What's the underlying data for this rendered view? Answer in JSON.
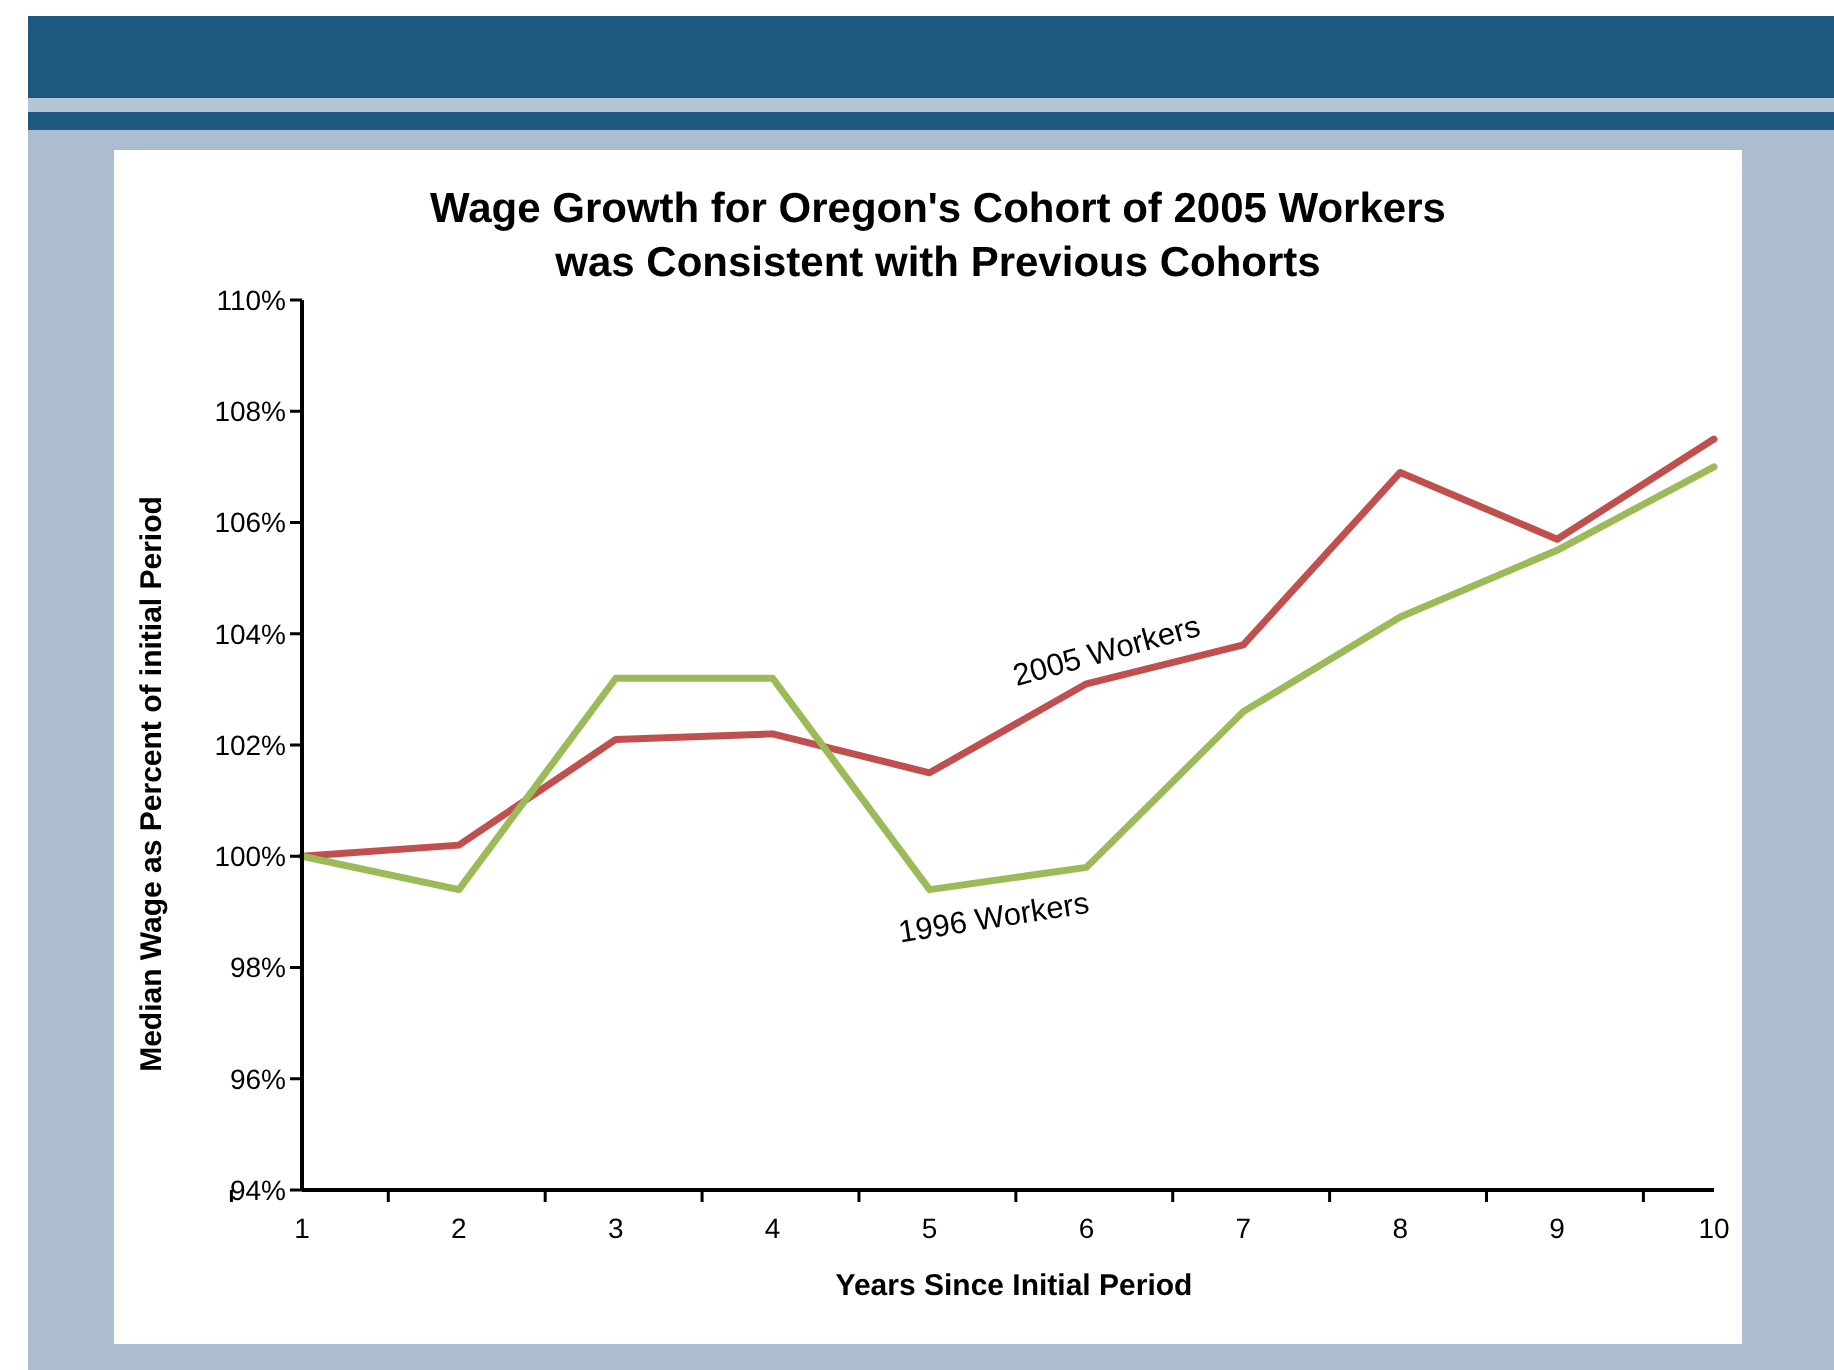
{
  "chart_data": {
    "type": "line",
    "title": "Wage Growth for Oregon's Cohort of 2005 Workers was Consistent with Previous Cohorts",
    "xlabel": "Years Since Initial Period",
    "ylabel": "Median Wage as Percent of initial Period",
    "categories": [
      "1",
      "2",
      "3",
      "4",
      "5",
      "6",
      "7",
      "8",
      "9",
      "10"
    ],
    "series": [
      {
        "name": "2005 Workers",
        "color": "#c0504d",
        "values": [
          100.0,
          100.2,
          102.1,
          102.2,
          101.5,
          103.1,
          103.8,
          106.9,
          105.7,
          107.5
        ]
      },
      {
        "name": "1996 Workers",
        "color": "#9bbb59",
        "values": [
          100.0,
          99.4,
          103.2,
          103.2,
          99.4,
          99.8,
          102.6,
          104.3,
          105.5,
          107.0
        ]
      }
    ],
    "ylim": [
      94,
      110
    ],
    "yticks": [
      {
        "value": 94,
        "label": "94%"
      },
      {
        "value": 96,
        "label": "96%"
      },
      {
        "value": 98,
        "label": "98%"
      },
      {
        "value": 100,
        "label": "100%"
      },
      {
        "value": 102,
        "label": "102%"
      },
      {
        "value": 104,
        "label": "104%"
      },
      {
        "value": 106,
        "label": "106%"
      },
      {
        "value": 108,
        "label": "108%"
      },
      {
        "value": 110,
        "label": "110%"
      }
    ],
    "line_style": "solid"
  }
}
